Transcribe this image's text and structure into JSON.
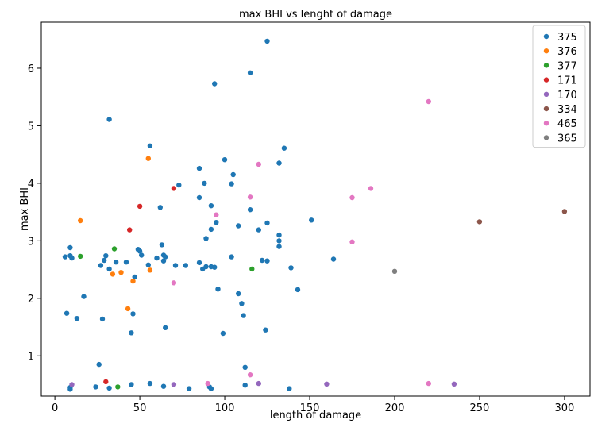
{
  "chart_data": {
    "type": "scatter",
    "title": "max BHI vs lenght of damage",
    "xlabel": "length of damage",
    "ylabel": "max BHI",
    "xlim": [
      -8,
      315
    ],
    "ylim": [
      0.3,
      6.8
    ],
    "xticks": [
      0,
      50,
      100,
      150,
      200,
      250,
      300
    ],
    "yticks": [
      1,
      2,
      3,
      4,
      5,
      6
    ],
    "grid": false,
    "legend_position": "top-right",
    "series": [
      {
        "name": "375",
        "color": "#1f77b4",
        "points": [
          [
            6,
            2.72
          ],
          [
            7,
            1.74
          ],
          [
            9,
            2.88
          ],
          [
            9,
            2.74
          ],
          [
            9,
            0.42
          ],
          [
            9,
            0.45
          ],
          [
            10,
            2.7
          ],
          [
            13,
            1.65
          ],
          [
            17,
            2.03
          ],
          [
            24,
            0.46
          ],
          [
            26,
            0.85
          ],
          [
            27,
            2.57
          ],
          [
            28,
            1.64
          ],
          [
            29,
            2.66
          ],
          [
            30,
            2.74
          ],
          [
            32,
            5.11
          ],
          [
            32,
            0.44
          ],
          [
            32,
            2.51
          ],
          [
            36,
            2.63
          ],
          [
            42,
            2.63
          ],
          [
            45,
            1.4
          ],
          [
            45,
            0.5
          ],
          [
            46,
            1.73
          ],
          [
            47,
            2.37
          ],
          [
            49,
            2.85
          ],
          [
            50,
            2.82
          ],
          [
            51,
            2.75
          ],
          [
            55,
            2.58
          ],
          [
            56,
            4.65
          ],
          [
            56,
            0.52
          ],
          [
            60,
            2.7
          ],
          [
            62,
            3.58
          ],
          [
            63,
            2.93
          ],
          [
            64,
            2.75
          ],
          [
            64,
            2.65
          ],
          [
            64,
            0.47
          ],
          [
            65,
            2.72
          ],
          [
            65,
            1.49
          ],
          [
            71,
            2.57
          ],
          [
            73,
            3.97
          ],
          [
            77,
            2.57
          ],
          [
            79,
            0.43
          ],
          [
            85,
            4.26
          ],
          [
            85,
            3.75
          ],
          [
            85,
            2.62
          ],
          [
            87,
            2.51
          ],
          [
            88,
            4.0
          ],
          [
            89,
            3.04
          ],
          [
            89,
            2.55
          ],
          [
            91,
            0.46
          ],
          [
            92,
            3.61
          ],
          [
            92,
            0.43
          ],
          [
            92,
            3.2
          ],
          [
            92,
            2.55
          ],
          [
            94,
            5.73
          ],
          [
            94,
            2.54
          ],
          [
            95,
            3.32
          ],
          [
            96,
            2.16
          ],
          [
            99,
            1.39
          ],
          [
            100,
            4.41
          ],
          [
            104,
            2.72
          ],
          [
            104,
            3.99
          ],
          [
            105,
            4.15
          ],
          [
            108,
            3.26
          ],
          [
            108,
            2.08
          ],
          [
            110,
            1.91
          ],
          [
            111,
            1.7
          ],
          [
            112,
            0.49
          ],
          [
            112,
            0.8
          ],
          [
            115,
            5.92
          ],
          [
            115,
            3.54
          ],
          [
            120,
            3.19
          ],
          [
            122,
            2.66
          ],
          [
            124,
            1.45
          ],
          [
            125,
            6.47
          ],
          [
            125,
            3.31
          ],
          [
            125,
            2.65
          ],
          [
            132,
            2.9
          ],
          [
            132,
            3.0
          ],
          [
            132,
            3.1
          ],
          [
            132,
            4.35
          ],
          [
            135,
            4.61
          ],
          [
            138,
            0.43
          ],
          [
            139,
            2.53
          ],
          [
            143,
            2.15
          ],
          [
            151,
            3.36
          ],
          [
            164,
            2.68
          ]
        ]
      },
      {
        "name": "376",
        "color": "#ff7f0e",
        "points": [
          [
            15,
            3.35
          ],
          [
            34,
            2.42
          ],
          [
            39,
            2.45
          ],
          [
            43,
            1.82
          ],
          [
            46,
            2.3
          ],
          [
            55,
            4.43
          ],
          [
            56,
            2.49
          ]
        ]
      },
      {
        "name": "377",
        "color": "#2ca02c",
        "points": [
          [
            15,
            2.73
          ],
          [
            35,
            2.86
          ],
          [
            37,
            0.46
          ],
          [
            116,
            2.51
          ]
        ]
      },
      {
        "name": "171",
        "color": "#d62728",
        "points": [
          [
            30,
            0.55
          ],
          [
            44,
            3.19
          ],
          [
            50,
            3.6
          ],
          [
            70,
            3.91
          ]
        ]
      },
      {
        "name": "170",
        "color": "#9467bd",
        "points": [
          [
            10,
            0.5
          ],
          [
            70,
            0.5
          ],
          [
            120,
            0.52
          ],
          [
            160,
            0.51
          ],
          [
            235,
            0.51
          ]
        ]
      },
      {
        "name": "334",
        "color": "#8c564b",
        "points": [
          [
            250,
            3.33
          ],
          [
            300,
            3.51
          ]
        ]
      },
      {
        "name": "465",
        "color": "#e377c2",
        "points": [
          [
            70,
            2.27
          ],
          [
            90,
            0.52
          ],
          [
            95,
            3.45
          ],
          [
            115,
            3.76
          ],
          [
            115,
            0.67
          ],
          [
            120,
            4.33
          ],
          [
            175,
            3.75
          ],
          [
            175,
            2.98
          ],
          [
            186,
            3.91
          ],
          [
            220,
            5.42
          ],
          [
            220,
            0.52
          ]
        ]
      },
      {
        "name": "365",
        "color": "#7f7f7f",
        "points": [
          [
            200,
            2.47
          ]
        ]
      }
    ]
  }
}
